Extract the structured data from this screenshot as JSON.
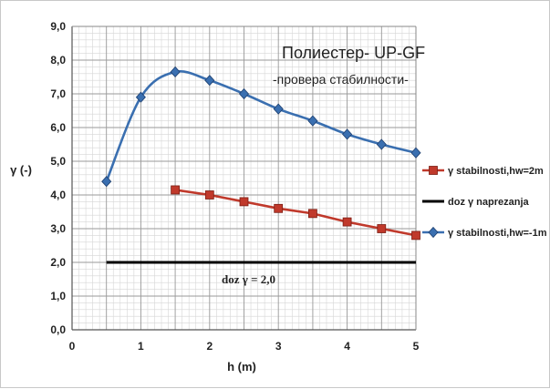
{
  "chart_data": {
    "type": "line",
    "title": "Полиестер- UP-GF",
    "subtitle": "-провера стабилности-",
    "xlabel": "h (m)",
    "ylabel": "γ (-)",
    "xlim": [
      0,
      5
    ],
    "ylim": [
      0,
      9
    ],
    "x_ticks": [
      "0",
      "1",
      "2",
      "3",
      "4",
      "5"
    ],
    "y_ticks": [
      "0,0",
      "1,0",
      "2,0",
      "3,0",
      "4,0",
      "5,0",
      "6,0",
      "7,0",
      "8,0",
      "9,0"
    ],
    "grid": true,
    "legend_position": "right",
    "annotation": "doz γ = 2,0",
    "series": [
      {
        "name": "γ stabilnosti,hw=2m",
        "color": "#c0392b",
        "marker": "square",
        "smooth": false,
        "x": [
          1.5,
          2.0,
          2.5,
          3.0,
          3.5,
          4.0,
          4.5,
          5.0
        ],
        "y": [
          4.15,
          4.0,
          3.8,
          3.6,
          3.45,
          3.2,
          3.0,
          2.8
        ]
      },
      {
        "name": "doz γ naprezanja",
        "color": "#000000",
        "marker": "none",
        "smooth": false,
        "x": [
          0.5,
          5.0
        ],
        "y": [
          2.0,
          2.0
        ]
      },
      {
        "name": "γ stabilnosti,hw=-1m",
        "color": "#3a6fb0",
        "marker": "diamond",
        "smooth": true,
        "x": [
          0.5,
          1.0,
          1.5,
          2.0,
          2.5,
          3.0,
          3.5,
          4.0,
          4.5,
          5.0
        ],
        "y": [
          4.4,
          6.9,
          7.65,
          7.4,
          7.0,
          6.55,
          6.2,
          5.8,
          5.5,
          5.25
        ]
      }
    ]
  }
}
